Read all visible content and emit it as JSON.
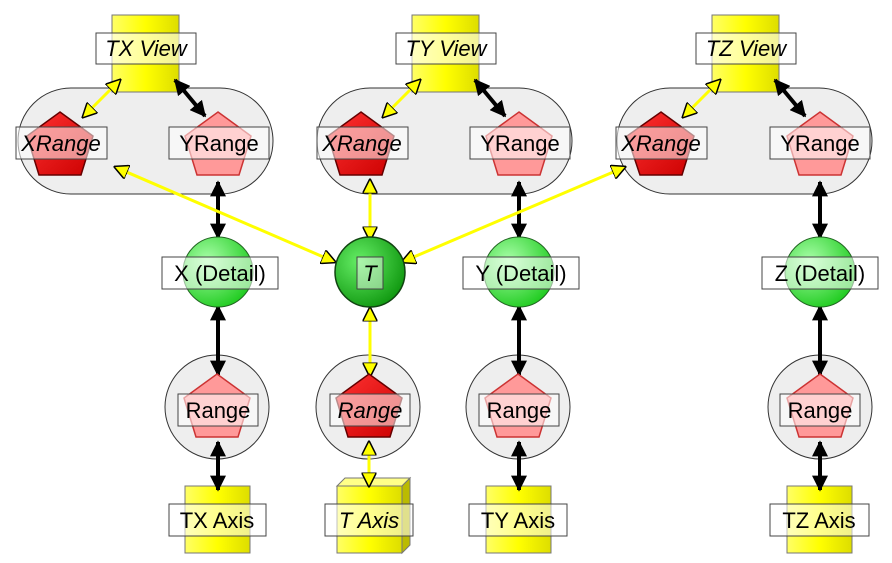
{
  "colors": {
    "view_fill": "#ffff00",
    "range_fill": "#ff0000",
    "detail_fill": "#33dd33",
    "group_fill": "#eeeeee",
    "yellow_link": "#ffff00",
    "black_link": "#000000"
  },
  "views": [
    {
      "label": "TX View"
    },
    {
      "label": "TY View"
    },
    {
      "label": "TZ View"
    }
  ],
  "view_ranges": [
    {
      "x_label": "XRange",
      "x_prefix": "X",
      "x_suffix": "Range",
      "y_label": "YRange"
    },
    {
      "x_label": "XRange",
      "x_prefix": "X",
      "x_suffix": "Range",
      "y_label": "YRange"
    },
    {
      "x_label": "XRange",
      "x_prefix": "X",
      "x_suffix": "Range",
      "y_label": "YRange"
    }
  ],
  "details": [
    {
      "label": "X (Detail)"
    },
    {
      "label": "Y (Detail)"
    },
    {
      "label": "Z (Detail)"
    }
  ],
  "t_node": {
    "label": "T"
  },
  "axis_ranges": [
    {
      "label": "Range"
    },
    {
      "label": "Range"
    },
    {
      "label": "Range"
    },
    {
      "label": "Range"
    }
  ],
  "axes": [
    {
      "label": "TX Axis"
    },
    {
      "label": "T Axis"
    },
    {
      "label": "TY Axis"
    },
    {
      "label": "TZ Axis"
    }
  ]
}
